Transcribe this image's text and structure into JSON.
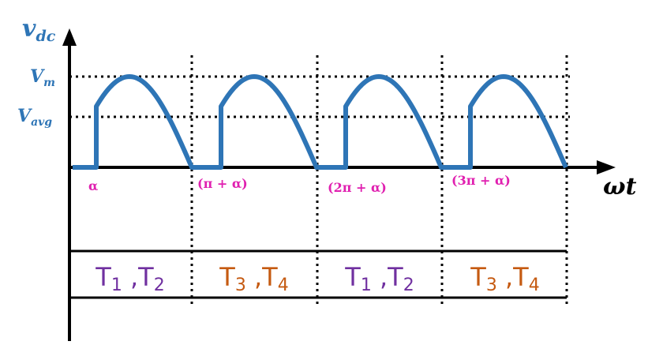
{
  "axes": {
    "y_label": {
      "letter": "v",
      "sub": "dc"
    },
    "x_label": "ωt",
    "levels": [
      {
        "letter": "V",
        "sub": "m"
      },
      {
        "letter": "V",
        "sub": "avg"
      }
    ],
    "angle_labels": [
      "α",
      "(π + α)",
      "(2π + α)",
      "(3π + α)"
    ]
  },
  "conduction": [
    {
      "first": {
        "letter": "T",
        "sub": "1"
      },
      "separator": " ,",
      "second": {
        "letter": "T",
        "sub": "2"
      },
      "color": "#7030a0"
    },
    {
      "first": {
        "letter": "T",
        "sub": "3"
      },
      "separator": " ,",
      "second": {
        "letter": "T",
        "sub": "4"
      },
      "color": "#c55a11"
    },
    {
      "first": {
        "letter": "T",
        "sub": "1"
      },
      "separator": " ,",
      "second": {
        "letter": "T",
        "sub": "2"
      },
      "color": "#7030a0"
    },
    {
      "first": {
        "letter": "T",
        "sub": "3"
      },
      "separator": " ,",
      "second": {
        "letter": "T",
        "sub": "4"
      },
      "color": "#c55a11"
    }
  ]
}
